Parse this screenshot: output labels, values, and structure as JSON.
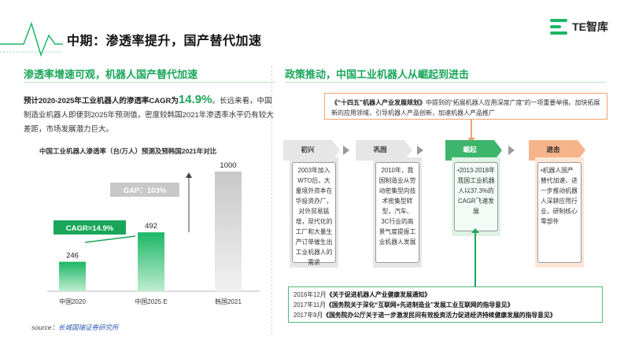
{
  "header": {
    "title": "中期：渗透率提升，国产替代加速",
    "logo_text": "TE智库",
    "logo_color": "#1db766"
  },
  "left": {
    "section_title": "渗透率增速可观，机器人国产替代加速",
    "para_lead": "预计2020-2025年工业机器人的渗透率CAGR为",
    "para_rate": "14.9%",
    "para_rest": "。长远来看，中国制造业机器人即便到2025年预测值，密度较韩国2021年渗透率水平仍有较大差距，市场发展潜力巨大。",
    "chart_title": "中国工业机器人渗透率（台/万人）预测及预韩国2021年对比",
    "source_label": "source：",
    "source_name": "长城国瑞证券研究所"
  },
  "chart_data": {
    "type": "bar",
    "title": "中国工业机器人渗透率（台/万人）预测及预韩国2021年对比",
    "categories": [
      "中国2020",
      "中国2025 E",
      "韩国2021"
    ],
    "values": [
      246,
      492,
      1000
    ],
    "annotations": [
      "CAGR=14.9%",
      "GAP：103%"
    ],
    "colors": {
      "green": "#1db766",
      "gray": "#c8c8c8",
      "dark_green": "#1aa65a"
    }
  },
  "right": {
    "section_title": "政策推动，中国工业机器人从崛起到进击",
    "quote_title": "《“十四五”机器人产业发展规划》",
    "quote_text": "中提到的“拓展机器人应用深度广度”的一项重要举措。加快拓展新的应用领域，引导机器人产品创新，加速机器人产品推广",
    "stages": [
      {
        "head": "初兴",
        "body": "2003年加入WTO后，大量境外资本在华投资办厂，对外贸易猛增，现代化的工厂和大量生产订单催生出工业机器人的需求"
      },
      {
        "head": "巩固",
        "body": "2010年，我国制造业从劳动密集型向技术密集型转型，汽车、3C行业的高景气度提振工业机器人发展"
      },
      {
        "head": "崛起",
        "body": "•2013-2018年我国工业机器人以37.3%的CAGR飞速发展"
      },
      {
        "head": "进击",
        "body": "•机器人国产替代加速，进一步推动机器人深耕应用行业，研制核心零部件"
      }
    ],
    "policies": [
      {
        "date": "2016年12月",
        "name": "《关于促进机器人产业健康发展通知》"
      },
      {
        "date": "2017年11月",
        "name": "《国务院关于深化“互联网+先进制造业”发展工业互联网的指导意见》"
      },
      {
        "date": "2017年9月",
        "name": "《国务院办公厅关于进一步激发民间有效投资活力促进经济持续健康发展的指导意见》"
      }
    ]
  }
}
